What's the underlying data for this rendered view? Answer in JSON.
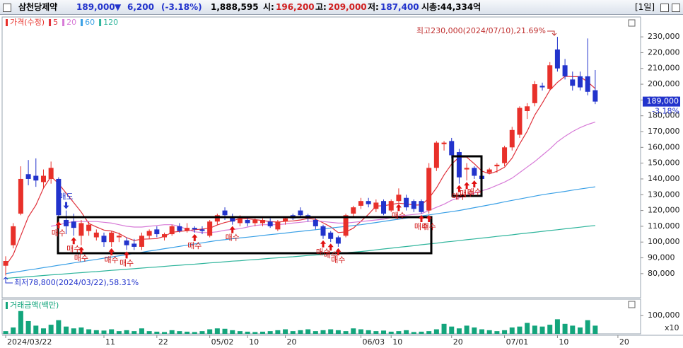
{
  "header": {
    "name": "삼천당제약",
    "price": "189,000",
    "arrow": "▼",
    "change": "6,200",
    "pct": "(-3.18%)",
    "volume": "1,888,595",
    "open_label": "시:",
    "open": "196,200",
    "high_label": "고:",
    "high": "209,000",
    "low_label": "저:",
    "low": "187,400",
    "cap": "시총:44,334억",
    "period": "[1일]"
  },
  "chart_data": [
    {
      "type": "candlestick",
      "name": "가격(수정)",
      "up_color": "#e8302a",
      "down_color": "#2233cc",
      "open": [
        85000,
        98000,
        118000,
        143000,
        142000,
        138000,
        140000,
        140000,
        114000,
        113000,
        104000,
        107000,
        103000,
        104000,
        100000,
        103000,
        101000,
        99000,
        97000,
        104000,
        108000,
        103000,
        105000,
        110000,
        107000,
        109000,
        108000,
        104000,
        113000,
        120000,
        116000,
        112000,
        114000,
        112000,
        112000,
        113000,
        108000,
        113000,
        117000,
        120000,
        117000,
        114000,
        110000,
        106000,
        103000,
        104000,
        118000,
        123000,
        126000,
        121000,
        126000,
        120000,
        126000,
        128000,
        126000,
        126000,
        120000,
        147000,
        162000,
        164000,
        157000,
        146000,
        147000,
        142000,
        144000,
        148000,
        150000,
        160000,
        168000,
        183000,
        188000,
        199000,
        197000,
        222000,
        212000,
        203000,
        205000,
        205000,
        196200
      ],
      "high": [
        91000,
        112000,
        148000,
        152000,
        153000,
        146000,
        151000,
        141000,
        120000,
        118000,
        114000,
        113000,
        108000,
        106000,
        107000,
        106000,
        103000,
        102000,
        106000,
        108000,
        110000,
        106000,
        111000,
        112000,
        112000,
        110000,
        110000,
        114000,
        118000,
        122000,
        118000,
        117000,
        116000,
        115000,
        115000,
        115000,
        114000,
        116000,
        118000,
        122000,
        118000,
        115000,
        111000,
        107000,
        104000,
        118000,
        123000,
        128000,
        128000,
        127000,
        127000,
        127000,
        134000,
        130000,
        127000,
        127000,
        150000,
        164000,
        164000,
        166000,
        159000,
        150000,
        148000,
        144000,
        147000,
        150000,
        161000,
        173000,
        186000,
        188000,
        202000,
        201000,
        214000,
        230000,
        216000,
        208000,
        208000,
        229000,
        209000
      ],
      "low": [
        78800,
        96000,
        117000,
        136000,
        135000,
        134000,
        137000,
        114000,
        105000,
        104000,
        98000,
        104000,
        101000,
        97000,
        97000,
        100000,
        95000,
        95000,
        95000,
        102000,
        103000,
        101000,
        104000,
        106000,
        106000,
        106000,
        105000,
        103000,
        111000,
        114000,
        111000,
        110000,
        110000,
        110000,
        110000,
        109000,
        107000,
        111000,
        114000,
        116000,
        113000,
        108000,
        102000,
        100000,
        97000,
        103000,
        116000,
        121000,
        122000,
        119000,
        117000,
        119000,
        125000,
        120000,
        119000,
        118000,
        118000,
        145000,
        158000,
        153000,
        137000,
        139000,
        140000,
        138000,
        143000,
        144000,
        148000,
        158000,
        166000,
        178000,
        186000,
        196000,
        196000,
        208000,
        203000,
        196000,
        196000,
        193000,
        187400
      ],
      "close": [
        88000,
        110000,
        140000,
        140000,
        139000,
        142000,
        147000,
        117000,
        110000,
        109000,
        112000,
        111000,
        106000,
        100000,
        106000,
        104000,
        98000,
        97000,
        104000,
        107000,
        105000,
        105000,
        110000,
        107000,
        109000,
        108000,
        107000,
        113000,
        117000,
        117000,
        113000,
        115000,
        112000,
        114000,
        114000,
        110000,
        113000,
        115000,
        115000,
        117000,
        115000,
        110000,
        104000,
        102000,
        99000,
        117000,
        122000,
        126000,
        124000,
        125000,
        118000,
        126000,
        130000,
        122000,
        121000,
        119000,
        147000,
        163000,
        163000,
        155000,
        141000,
        147000,
        142000,
        140000,
        146000,
        149000,
        160000,
        171000,
        185000,
        186000,
        200000,
        198000,
        212000,
        210000,
        205000,
        199000,
        198000,
        195200,
        189000
      ],
      "lines": [
        {
          "name": "5",
          "color": "#e0303a",
          "values": [
            85000,
            92000,
            104000,
            116000,
            123400,
            134200,
            141600,
            137000,
            131000,
            125000,
            119000,
            111800,
            109600,
            107600,
            107000,
            105400,
            102800,
            101000,
            101800,
            102000,
            102200,
            103600,
            106200,
            106800,
            107200,
            107800,
            108200,
            108800,
            110800,
            112400,
            113400,
            115000,
            114800,
            114200,
            113600,
            113000,
            112600,
            113200,
            113400,
            114000,
            115000,
            114400,
            112200,
            109600,
            106000,
            106400,
            108800,
            113200,
            117600,
            122800,
            123000,
            123800,
            124600,
            124200,
            123400,
            123600,
            127800,
            134400,
            142600,
            149400,
            153800,
            153800,
            149600,
            145000,
            143200,
            144800,
            147400,
            153200,
            162200,
            170200,
            180400,
            188000,
            196200,
            201200,
            205000,
            204800,
            204800,
            201440,
            197240
          ]
        },
        {
          "name": "20",
          "color": "#d77ad7",
          "values": [
            null,
            null,
            null,
            null,
            null,
            null,
            110000,
            111000,
            112000,
            113000,
            113000,
            113000,
            113000,
            112500,
            112000,
            111000,
            110000,
            109500,
            109500,
            110000,
            110500,
            111000,
            111000,
            110000,
            108000,
            106500,
            106000,
            106000,
            106500,
            107500,
            108000,
            108500,
            109500,
            110500,
            111000,
            111000,
            111000,
            111500,
            112000,
            112500,
            113000,
            113500,
            113000,
            112500,
            112000,
            112000,
            112500,
            113000,
            113500,
            114000,
            114500,
            115500,
            116500,
            117000,
            117500,
            118000,
            120000,
            122000,
            124000,
            126500,
            128000,
            129500,
            131000,
            132500,
            134000,
            136000,
            138000,
            140500,
            144000,
            147500,
            151000,
            155000,
            159000,
            163500,
            167000,
            170000,
            172500,
            174500,
            176000
          ]
        },
        {
          "name": "60",
          "color": "#3aa0e6",
          "values": [
            80000,
            80800,
            81500,
            82300,
            83000,
            83800,
            84500,
            85300,
            86000,
            86800,
            87500,
            88300,
            89000,
            89800,
            90500,
            91300,
            92000,
            92800,
            93500,
            94300,
            95000,
            95800,
            96500,
            97300,
            98000,
            98800,
            99500,
            100300,
            101000,
            101500,
            102100,
            102600,
            103100,
            103600,
            104200,
            104700,
            105200,
            105700,
            106300,
            106800,
            107300,
            107800,
            108400,
            108900,
            109400,
            109900,
            110500,
            111000,
            111700,
            112400,
            113100,
            113800,
            114500,
            115200,
            115800,
            116500,
            117200,
            117900,
            118600,
            119300,
            120000,
            120900,
            121800,
            122700,
            123600,
            124500,
            125500,
            126400,
            127300,
            128200,
            129100,
            130000,
            130700,
            131400,
            132100,
            132900,
            133600,
            134300,
            135000
          ]
        },
        {
          "name": "120",
          "color": "#2fb59c",
          "values": [
            77000,
            77400,
            77700,
            78100,
            78400,
            78800,
            79200,
            79500,
            79900,
            80300,
            80600,
            81000,
            81300,
            81700,
            82100,
            82400,
            82800,
            83100,
            83500,
            83900,
            84200,
            84600,
            85000,
            85300,
            85700,
            86000,
            86400,
            86800,
            87100,
            87500,
            87900,
            88200,
            88600,
            88900,
            89300,
            89700,
            90000,
            90400,
            90700,
            91100,
            91500,
            91800,
            92200,
            92600,
            92900,
            93300,
            93600,
            94000,
            94500,
            95100,
            95600,
            96100,
            96700,
            97200,
            97700,
            98300,
            98800,
            99300,
            99900,
            100400,
            100900,
            101500,
            102000,
            102500,
            103000,
            103600,
            104100,
            104600,
            105200,
            105700,
            106200,
            106800,
            107300,
            107800,
            108400,
            108900,
            109400,
            110000,
            110500
          ]
        }
      ],
      "buy_signals": [
        null,
        null,
        null,
        null,
        null,
        null,
        null,
        "매수",
        null,
        "매수",
        "매수",
        null,
        null,
        null,
        "매수",
        null,
        "매수",
        null,
        null,
        null,
        null,
        null,
        null,
        null,
        null,
        "매수",
        null,
        null,
        null,
        null,
        "매수",
        null,
        null,
        null,
        null,
        null,
        null,
        null,
        null,
        null,
        null,
        null,
        "매수",
        "매수",
        "매수",
        null,
        null,
        null,
        null,
        null,
        null,
        null,
        "매수",
        null,
        null,
        "매수",
        "매수",
        null,
        null,
        null,
        "매수",
        "매수",
        "매수",
        null,
        null,
        null,
        null,
        null,
        null,
        null,
        null,
        null,
        null,
        null,
        null,
        null,
        null,
        null,
        null
      ],
      "sell_signals": [
        null,
        null,
        null,
        null,
        null,
        null,
        null,
        null,
        "매도",
        null,
        null,
        null,
        null,
        null,
        null,
        null,
        null,
        null,
        null,
        null,
        null,
        null,
        null,
        null,
        null,
        null,
        null,
        null,
        null,
        null,
        null,
        null,
        null,
        null,
        null,
        null,
        null,
        null,
        null,
        null,
        null,
        null,
        null,
        null,
        null,
        null,
        null,
        null,
        null,
        null,
        null,
        null,
        null,
        null,
        null,
        null,
        null,
        null,
        null,
        null,
        null,
        null,
        null,
        null,
        null,
        null,
        null,
        null,
        null,
        null,
        null,
        null,
        null,
        null,
        null,
        null,
        null,
        null,
        null
      ],
      "annotations": {
        "high": "최고230,000(2024/07/10),21.69%",
        "low": "최저78,800(2024/03/22),58.31%"
      },
      "price_tag": "189,000",
      "change_tag": "-3.18%",
      "xlim": [
        -0.47,
        84
      ],
      "ylim": [
        64700,
        242600
      ],
      "yticks": [
        {
          "value": 80000,
          "label": "80,000"
        },
        {
          "value": 90000,
          "label": "90,000"
        },
        {
          "value": 100000,
          "label": "100,000"
        },
        {
          "value": 110000,
          "label": "110,000"
        },
        {
          "value": 120000,
          "label": "120,000"
        },
        {
          "value": 130000,
          "label": "130,000"
        },
        {
          "value": 140000,
          "label": "140,000"
        },
        {
          "value": 150000,
          "label": "150,000"
        },
        {
          "value": 160000,
          "label": "160,000"
        },
        {
          "value": 170000,
          "label": "170,000"
        },
        {
          "value": 180000,
          "label": "180,000"
        },
        {
          "value": 190000,
          "label": "190,000"
        },
        {
          "value": 200000,
          "label": "200,000"
        },
        {
          "value": 210000,
          "label": "210,000"
        },
        {
          "value": 220000,
          "label": "220,000"
        },
        {
          "value": 230000,
          "label": "230,000"
        }
      ]
    },
    {
      "type": "bar",
      "name": "거래금액(백만)",
      "color": "#13a57c",
      "values": [
        15000,
        35000,
        125000,
        70000,
        45000,
        30000,
        50000,
        75000,
        40000,
        30000,
        35000,
        25000,
        20000,
        18000,
        25000,
        15000,
        20000,
        15000,
        30000,
        15000,
        12000,
        10000,
        20000,
        15000,
        12000,
        10000,
        15000,
        25000,
        30000,
        28000,
        20000,
        15000,
        12000,
        10000,
        12000,
        15000,
        20000,
        25000,
        15000,
        20000,
        25000,
        15000,
        20000,
        25000,
        20000,
        15000,
        30000,
        25000,
        20000,
        15000,
        18000,
        12000,
        15000,
        20000,
        10000,
        12000,
        15000,
        25000,
        55000,
        40000,
        30000,
        45000,
        35000,
        25000,
        20000,
        15000,
        20000,
        35000,
        40000,
        60000,
        45000,
        40000,
        50000,
        80000,
        55000,
        45000,
        35000,
        75000,
        45000
      ],
      "xlim": [
        -0.47,
        84
      ],
      "ylim": [
        0,
        190000
      ],
      "yticks": [
        {
          "value": 100000,
          "label": "100,000"
        }
      ],
      "unit": "x10",
      "xticks": [
        {
          "value": 0,
          "label": "2024/03/22"
        },
        {
          "value": 13,
          "label": "11"
        },
        {
          "value": 20,
          "label": "22"
        },
        {
          "value": 27,
          "label": "05/02"
        },
        {
          "value": 32,
          "label": "10"
        },
        {
          "value": 37,
          "label": "20"
        },
        {
          "value": 47,
          "label": "06/03"
        },
        {
          "value": 51,
          "label": "10"
        },
        {
          "value": 59,
          "label": "20"
        },
        {
          "value": 66,
          "label": "07/01"
        },
        {
          "value": 73,
          "label": "10"
        },
        {
          "value": 81,
          "label": "20"
        }
      ]
    }
  ]
}
